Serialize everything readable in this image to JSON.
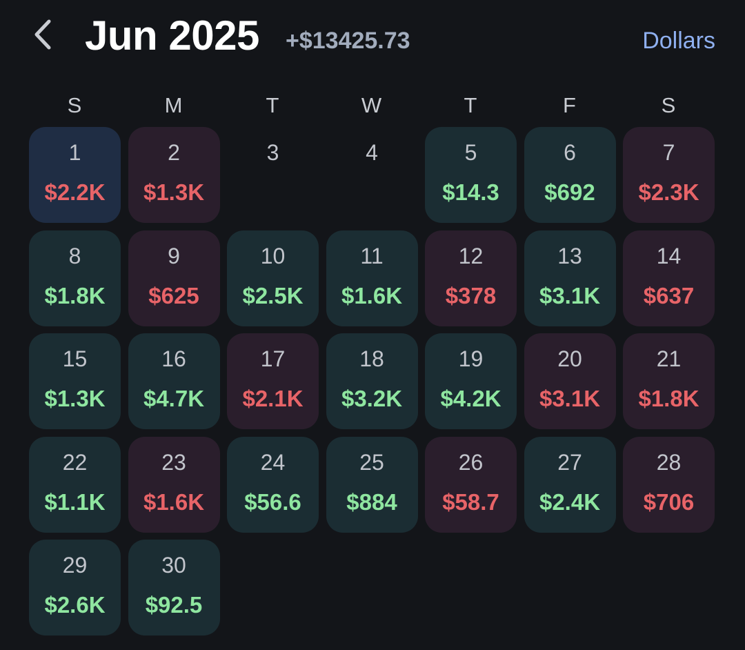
{
  "header": {
    "month_title": "Jun 2025",
    "month_total": "+$13425.73",
    "unit_label": "Dollars",
    "back_icon": "chevron-left-icon"
  },
  "weekdays": [
    "S",
    "M",
    "T",
    "W",
    "T",
    "F",
    "S"
  ],
  "colors": {
    "background": "#131519",
    "positive_text": "#8fe6a0",
    "negative_text": "#e86468",
    "positive_cell": "#1b2d33",
    "negative_cell": "#2a1e2c",
    "today_cell": "#1f2d44",
    "accent": "#8fb0f0"
  },
  "days": [
    {
      "day": "1",
      "amount": "$2.2K",
      "sign": "neg",
      "today": true
    },
    {
      "day": "2",
      "amount": "$1.3K",
      "sign": "neg"
    },
    {
      "day": "3",
      "amount": "",
      "sign": "none"
    },
    {
      "day": "4",
      "amount": "",
      "sign": "none"
    },
    {
      "day": "5",
      "amount": "$14.3",
      "sign": "pos"
    },
    {
      "day": "6",
      "amount": "$692",
      "sign": "pos"
    },
    {
      "day": "7",
      "amount": "$2.3K",
      "sign": "neg"
    },
    {
      "day": "8",
      "amount": "$1.8K",
      "sign": "pos"
    },
    {
      "day": "9",
      "amount": "$625",
      "sign": "neg"
    },
    {
      "day": "10",
      "amount": "$2.5K",
      "sign": "pos"
    },
    {
      "day": "11",
      "amount": "$1.6K",
      "sign": "pos"
    },
    {
      "day": "12",
      "amount": "$378",
      "sign": "neg"
    },
    {
      "day": "13",
      "amount": "$3.1K",
      "sign": "pos"
    },
    {
      "day": "14",
      "amount": "$637",
      "sign": "neg"
    },
    {
      "day": "15",
      "amount": "$1.3K",
      "sign": "pos"
    },
    {
      "day": "16",
      "amount": "$4.7K",
      "sign": "pos"
    },
    {
      "day": "17",
      "amount": "$2.1K",
      "sign": "neg"
    },
    {
      "day": "18",
      "amount": "$3.2K",
      "sign": "pos"
    },
    {
      "day": "19",
      "amount": "$4.2K",
      "sign": "pos"
    },
    {
      "day": "20",
      "amount": "$3.1K",
      "sign": "neg"
    },
    {
      "day": "21",
      "amount": "$1.8K",
      "sign": "neg"
    },
    {
      "day": "22",
      "amount": "$1.1K",
      "sign": "pos"
    },
    {
      "day": "23",
      "amount": "$1.6K",
      "sign": "neg"
    },
    {
      "day": "24",
      "amount": "$56.6",
      "sign": "pos"
    },
    {
      "day": "25",
      "amount": "$884",
      "sign": "pos"
    },
    {
      "day": "26",
      "amount": "$58.7",
      "sign": "neg"
    },
    {
      "day": "27",
      "amount": "$2.4K",
      "sign": "pos"
    },
    {
      "day": "28",
      "amount": "$706",
      "sign": "neg"
    },
    {
      "day": "29",
      "amount": "$2.6K",
      "sign": "pos"
    },
    {
      "day": "30",
      "amount": "$92.5",
      "sign": "pos"
    }
  ]
}
